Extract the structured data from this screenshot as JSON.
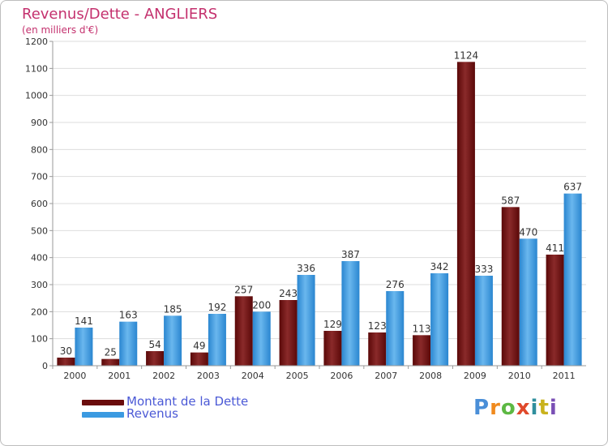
{
  "title": "Revenus/Dette - ANGLIERS",
  "subtitle": "(en milliers d'€)",
  "legend": {
    "dette_label": "Montant de la Dette",
    "revenus_label": "Revenus"
  },
  "logo_text": "Proxiti",
  "colors": {
    "dette": "#7a1010",
    "revenus": "#3b9ae1",
    "title": "#c4316e",
    "legend_text": "#4b59d6"
  },
  "chart_data": {
    "type": "bar",
    "categories": [
      "2000",
      "2001",
      "2002",
      "2003",
      "2004",
      "2005",
      "2006",
      "2007",
      "2008",
      "2009",
      "2010",
      "2011"
    ],
    "series": [
      {
        "name": "Montant de la Dette",
        "values": [
          30,
          25,
          54,
          49,
          257,
          243,
          129,
          123,
          113,
          1124,
          587,
          411
        ]
      },
      {
        "name": "Revenus",
        "values": [
          141,
          163,
          185,
          192,
          200,
          336,
          387,
          276,
          342,
          333,
          470,
          637
        ]
      }
    ],
    "ylim": [
      0,
      1200
    ],
    "yticks": [
      0,
      100,
      200,
      300,
      400,
      500,
      600,
      700,
      800,
      900,
      1000,
      1100,
      1200
    ],
    "grid": "horizontal",
    "legend_position": "bottom-left"
  }
}
